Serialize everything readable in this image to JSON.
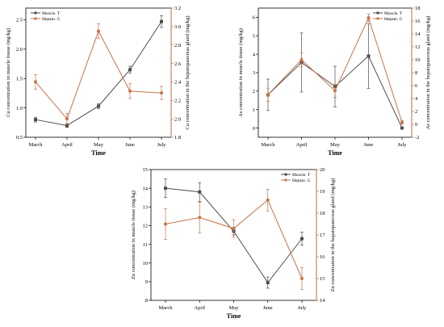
{
  "colors": {
    "muscle": "#4d4d4d",
    "hepato": "#c8734a",
    "axis": "#000000"
  },
  "chart_data": [
    {
      "type": "line",
      "categories": [
        "March",
        "April",
        "May",
        "June",
        "July"
      ],
      "xlabel": "Time",
      "ylabel": "Cu concentration in muscle tissue (mg/kg)",
      "y2label": "Cu concentration in the hepatopancreas gland (mg/kg)",
      "ylim": [
        0.5,
        2.7
      ],
      "yticks": [
        "0.5",
        "1.0",
        "1.5",
        "2.0",
        "2.5"
      ],
      "y2lim": [
        1.8,
        3.2
      ],
      "y2ticks": [
        "1.8",
        "2.0",
        "2.2",
        "2.4",
        "2.6",
        "2.8",
        "3.0",
        "3.2"
      ],
      "legend_position": "top-left",
      "series": [
        {
          "name": "Muscle. T",
          "axis": "left",
          "marker": "square",
          "values": [
            0.8,
            0.7,
            1.03,
            1.65,
            2.47
          ],
          "errors": [
            0.04,
            0.03,
            0.04,
            0.06,
            0.1
          ]
        },
        {
          "name": "Hepato. G",
          "axis": "right",
          "marker": "circle",
          "values": [
            2.4,
            2.0,
            2.95,
            2.3,
            2.28
          ],
          "errors": [
            0.08,
            0.06,
            0.08,
            0.08,
            0.07
          ]
        }
      ]
    },
    {
      "type": "line",
      "categories": [
        "March",
        "April",
        "May",
        "June",
        "July"
      ],
      "xlabel": "Time",
      "ylabel": "As concentration in muscle tissue (mg/kg)",
      "y2label": "As concentration in the hepatopancreas gland (mg/kg)",
      "ylim": [
        -0.5,
        6.5
      ],
      "yticks": [
        "0",
        "1",
        "2",
        "3",
        "4",
        "5",
        "6"
      ],
      "y2lim": [
        -2,
        18
      ],
      "y2ticks": [
        "-2",
        "0",
        "2",
        "4",
        "6",
        "8",
        "10",
        "12",
        "14",
        "16",
        "18"
      ],
      "legend_position": "top-right",
      "series": [
        {
          "name": "Muscle. T",
          "axis": "left",
          "marker": "square",
          "values": [
            1.8,
            3.55,
            2.25,
            3.9,
            0.0
          ],
          "errors": [
            0.85,
            1.6,
            1.1,
            1.75,
            0.05
          ]
        },
        {
          "name": "Hepato. G",
          "axis": "right",
          "marker": "circle",
          "values": [
            4.6,
            10.0,
            5.2,
            16.5,
            0.3
          ],
          "errors": [
            1.0,
            1.1,
            1.0,
            0.6,
            0.3
          ]
        }
      ]
    },
    {
      "type": "line",
      "categories": [
        "March",
        "April",
        "May",
        "June",
        "July"
      ],
      "xlabel": "Time",
      "ylabel": "Zn concentration in muscle tissue (mg/kg)",
      "y2label": "Zn concentration in the hepatopancreas gland (mg/kg)",
      "ylim": [
        8,
        15
      ],
      "yticks": [
        "8",
        "9",
        "10",
        "11",
        "12",
        "13",
        "14",
        "15"
      ],
      "y2lim": [
        14,
        20
      ],
      "y2ticks": [
        "14",
        "15",
        "16",
        "17",
        "18",
        "19",
        "20"
      ],
      "legend_position": "top-right",
      "series": [
        {
          "name": "Muscle. T",
          "axis": "left",
          "marker": "square",
          "values": [
            14.0,
            13.8,
            11.7,
            8.95,
            11.3
          ],
          "errors": [
            0.5,
            0.5,
            0.2,
            0.3,
            0.35
          ]
        },
        {
          "name": "Hepato. G",
          "axis": "right",
          "marker": "circle",
          "values": [
            17.5,
            17.8,
            17.3,
            18.6,
            15.0
          ],
          "errors": [
            0.7,
            0.7,
            0.4,
            0.5,
            0.5
          ]
        }
      ]
    }
  ]
}
